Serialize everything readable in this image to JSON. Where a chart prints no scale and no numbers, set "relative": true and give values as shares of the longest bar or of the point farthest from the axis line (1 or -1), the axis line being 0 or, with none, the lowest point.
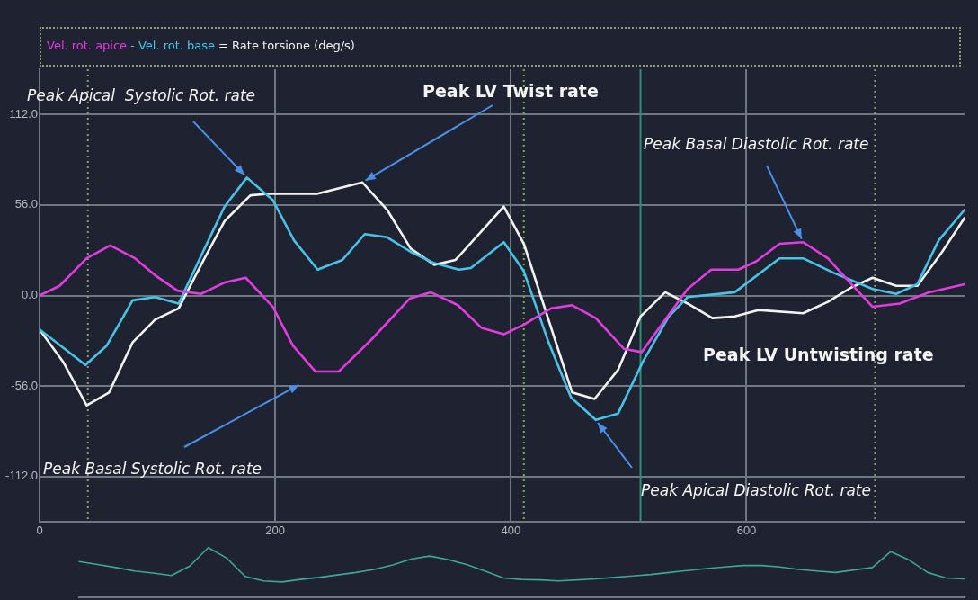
{
  "chart_data": [
    {
      "type": "line",
      "legend": "top left",
      "grid": true,
      "marker": "none",
      "line_style": "solid",
      "xlim": [
        0,
        785
      ],
      "xticks": [
        0,
        200,
        400,
        600
      ],
      "ylim": [
        -140,
        140
      ],
      "yticks": [
        {
          "value": 112,
          "label": "112.0"
        },
        {
          "value": 56,
          "label": "56.0"
        },
        {
          "value": 0,
          "label": "0.0"
        },
        {
          "value": -56,
          "label": "-56.0"
        },
        {
          "value": -112,
          "label": "-112.0"
        }
      ],
      "series": [
        {
          "name": "Vel. rot. apice",
          "color": "#e03ce0",
          "x": [
            0,
            17,
            40,
            60,
            81,
            99,
            117,
            137,
            157,
            175,
            198,
            215,
            234,
            254,
            282,
            314,
            332,
            355,
            375,
            394,
            411,
            434,
            452,
            472,
            496,
            511,
            550,
            570,
            593,
            608,
            628,
            648,
            669,
            689,
            707,
            730,
            755,
            785
          ],
          "values": [
            0,
            6,
            23,
            31,
            23,
            12,
            3,
            1,
            8,
            11,
            -7,
            -31,
            -47,
            -47,
            -27,
            -2,
            2,
            -6,
            -20,
            -24,
            -18,
            -8,
            -6,
            -14,
            -33,
            -35,
            4,
            16,
            16,
            21,
            32,
            33,
            23,
            7,
            -7,
            -5,
            2,
            7
          ]
        },
        {
          "name": "- Vel. rot. base",
          "color": "#46c3e6",
          "x": [
            0,
            39,
            57,
            79,
            98,
            118,
            140,
            157,
            176,
            198,
            216,
            236,
            257,
            276,
            295,
            315,
            335,
            356,
            366,
            394,
            411,
            432,
            451,
            472,
            491,
            512,
            534,
            550,
            590,
            628,
            648,
            674,
            707,
            727,
            745,
            763,
            785
          ],
          "values": [
            -21,
            -43,
            -31,
            -3,
            -1,
            -5,
            29,
            55,
            73,
            59,
            34,
            16,
            22,
            38,
            36,
            27,
            20,
            16,
            17,
            33,
            15,
            -29,
            -63,
            -77,
            -73,
            -41,
            -13,
            -1,
            2,
            23,
            23,
            14,
            4,
            1,
            7,
            34,
            53
          ]
        },
        {
          "name": "= Rate torsione (deg/s)",
          "color": "#f2f2f2",
          "x": [
            0,
            20,
            40,
            59,
            79,
            98,
            118,
            140,
            157,
            179,
            196,
            236,
            274,
            295,
            315,
            335,
            353,
            394,
            411,
            452,
            471,
            491,
            510,
            531,
            550,
            571,
            590,
            610,
            648,
            669,
            689,
            707,
            727,
            745,
            766,
            785
          ],
          "values": [
            -21,
            -41,
            -68,
            -60,
            -29,
            -15,
            -8,
            23,
            46,
            62,
            63,
            63,
            70,
            53,
            29,
            19,
            22,
            55,
            32,
            -60,
            -64,
            -46,
            -13,
            2,
            -5,
            -14,
            -13,
            -9,
            -11,
            -4,
            5,
            11,
            6,
            6,
            27,
            48
          ]
        }
      ],
      "ref_lines": [
        {
          "axis": "x",
          "value": 41,
          "color": "#8f9c78",
          "line_style": "dotted"
        },
        {
          "axis": "x",
          "value": 411,
          "color": "#7bb040",
          "line_style": "dotted"
        },
        {
          "axis": "x",
          "value": 510,
          "color": "#2f8f7f",
          "line_style": "solid"
        },
        {
          "axis": "x",
          "value": 709,
          "color": "#8f9c78",
          "line_style": "dotted"
        }
      ],
      "annotations": [
        {
          "text": "Peak Apical  Systolic Rot. rate",
          "x": 176,
          "y": 73
        },
        {
          "text": "Peak LV Twist rate",
          "x": 274,
          "y": 70
        },
        {
          "text": "Peak Basal Diastolic Rot. rate",
          "x": 648,
          "y": 33
        },
        "Peak LV Untwisting rate",
        "Peak Basal Systolic Rot. rate",
        {
          "text": "Peak Apical Diastolic Rot. rate",
          "x": 472,
          "y": -77
        }
      ]
    },
    {
      "type": "line",
      "relative": true,
      "color": "#3fa59a",
      "categories": [
        null,
        null,
        null,
        null,
        null,
        null,
        null,
        null,
        null,
        null,
        null,
        null,
        null,
        null,
        null,
        null,
        null,
        null,
        null,
        null,
        null,
        null,
        null,
        null,
        null,
        null,
        null,
        null,
        null,
        null,
        null,
        null,
        null,
        null,
        null,
        null,
        null,
        null,
        null,
        null,
        null,
        null,
        null,
        null,
        null,
        null,
        null,
        null,
        null
      ],
      "values": [
        0.72,
        0.66,
        0.6,
        0.53,
        0.49,
        0.44,
        0.63,
        1,
        0.79,
        0.42,
        0.33,
        0.31,
        0.36,
        0.4,
        0.45,
        0.5,
        0.56,
        0.65,
        0.77,
        0.83,
        0.76,
        0.66,
        0.53,
        0.39,
        0.36,
        0.35,
        0.33,
        0.35,
        0.37,
        0.4,
        0.43,
        0.46,
        0.5,
        0.54,
        0.58,
        0.61,
        0.64,
        0.64,
        0.61,
        0.56,
        0.53,
        0.5,
        0.55,
        0.6,
        0.92,
        0.75,
        0.5,
        0.39,
        0.37
      ]
    }
  ]
}
